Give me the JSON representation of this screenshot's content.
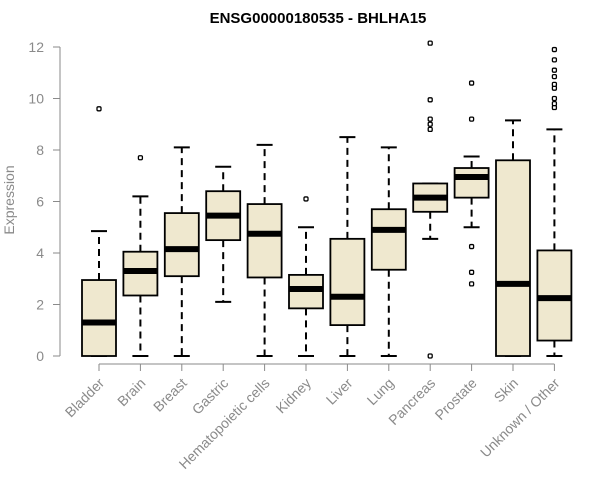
{
  "chart_data": {
    "type": "boxplot",
    "title": "ENSG00000180535 - BHLHA15",
    "xlabel": "",
    "ylabel": "Expression",
    "ylim": [
      0,
      12
    ],
    "yticks": [
      0,
      2,
      4,
      6,
      8,
      10,
      12
    ],
    "grid": false,
    "colors": {
      "box_fill": "#efe8cf",
      "box_stroke": "#000000",
      "axis": "#8a8a8a"
    },
    "categories": [
      "Bladder",
      "Brain",
      "Breast",
      "Gastric",
      "Hematopoietic cells",
      "Kidney",
      "Liver",
      "Lung",
      "Pancreas",
      "Prostate",
      "Skin",
      "Unknown / Other"
    ],
    "series": [
      {
        "name": "Bladder",
        "min": 0,
        "q1": 0,
        "median": 1.3,
        "q3": 2.95,
        "max": 4.85,
        "outliers": [
          9.6
        ]
      },
      {
        "name": "Brain",
        "min": 0,
        "q1": 2.35,
        "median": 3.3,
        "q3": 4.05,
        "max": 6.2,
        "outliers": [
          7.7
        ]
      },
      {
        "name": "Breast",
        "min": 0,
        "q1": 3.1,
        "median": 4.15,
        "q3": 5.55,
        "max": 8.1,
        "outliers": []
      },
      {
        "name": "Gastric",
        "min": 2.1,
        "q1": 4.5,
        "median": 5.45,
        "q3": 6.4,
        "max": 7.35,
        "outliers": []
      },
      {
        "name": "Hematopoietic cells",
        "min": 0,
        "q1": 3.05,
        "median": 4.75,
        "q3": 5.9,
        "max": 8.2,
        "outliers": []
      },
      {
        "name": "Kidney",
        "min": 0,
        "q1": 1.85,
        "median": 2.6,
        "q3": 3.15,
        "max": 5.0,
        "outliers": [
          6.1
        ]
      },
      {
        "name": "Liver",
        "min": 0,
        "q1": 1.2,
        "median": 2.3,
        "q3": 4.55,
        "max": 8.5,
        "outliers": []
      },
      {
        "name": "Lung",
        "min": 0,
        "q1": 3.35,
        "median": 4.9,
        "q3": 5.7,
        "max": 8.1,
        "outliers": []
      },
      {
        "name": "Pancreas",
        "min": 4.55,
        "q1": 5.6,
        "median": 6.15,
        "q3": 6.7,
        "max": 6.7,
        "outliers": [
          0,
          8.8,
          9.0,
          9.2,
          9.95,
          12.15
        ]
      },
      {
        "name": "Prostate",
        "min": 5.0,
        "q1": 6.15,
        "median": 6.95,
        "q3": 7.3,
        "max": 7.75,
        "outliers": [
          2.8,
          3.25,
          4.25,
          9.2,
          10.6
        ]
      },
      {
        "name": "Skin",
        "min": 0,
        "q1": 0,
        "median": 2.8,
        "q3": 7.6,
        "max": 9.15,
        "outliers": []
      },
      {
        "name": "Unknown / Other",
        "min": 0,
        "q1": 0.6,
        "median": 2.25,
        "q3": 4.1,
        "max": 8.8,
        "outliers": [
          9.65,
          9.8,
          10.0,
          10.4,
          10.55,
          10.85,
          11.1,
          11.5,
          11.9
        ]
      }
    ]
  }
}
